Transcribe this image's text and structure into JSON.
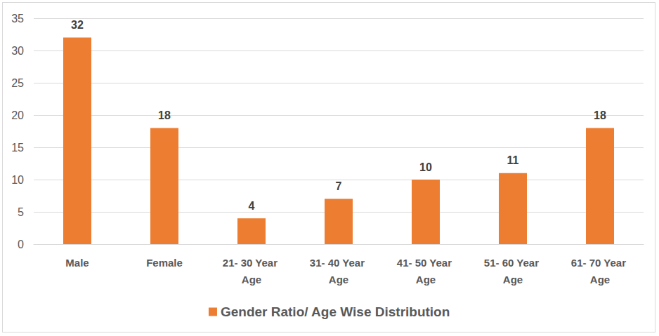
{
  "chart_data": {
    "type": "bar",
    "categories": [
      "Male",
      "Female",
      "21- 30 Year Age",
      "31- 40 Year Age",
      "41- 50 Year Age",
      "51- 60 Year Age",
      "61- 70 Year Age"
    ],
    "series": [
      {
        "name": "Gender Ratio/ Age Wise Distribution",
        "color": "#ed7d31",
        "values": [
          32,
          18,
          4,
          7,
          10,
          11,
          18
        ]
      }
    ],
    "ylim": [
      0,
      35
    ],
    "yticks": [
      0,
      5,
      10,
      15,
      20,
      25,
      30,
      35
    ],
    "grid": true,
    "legend": "bottom",
    "data_labels": true
  }
}
